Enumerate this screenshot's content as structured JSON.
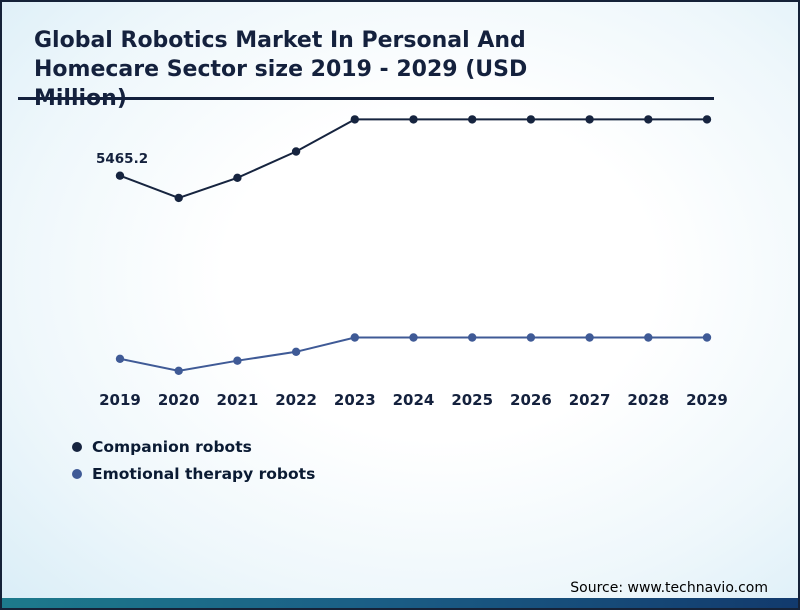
{
  "title": "Global Robotics Market In Personal And Homecare Sector size 2019 - 2029 (USD Million)",
  "source": "Source: www.technavio.com",
  "colors": {
    "title": "#14213d",
    "companion": "#16243f",
    "emotional": "#3f5a96",
    "strip_left": "#1d7a8c",
    "strip_right": "#123a6d"
  },
  "chart_data": {
    "type": "line",
    "categories": [
      "2019",
      "2020",
      "2021",
      "2022",
      "2023",
      "2024",
      "2025",
      "2026",
      "2027",
      "2028",
      "2029"
    ],
    "series": [
      {
        "name": "Companion robots",
        "color": "#16243f",
        "values": [
          5465.2,
          4890,
          5410,
          6090,
          6920,
          6920,
          6920,
          6920,
          6920,
          6920,
          6920
        ]
      },
      {
        "name": "Emotional therapy robots",
        "color": "#3f5a96",
        "values": [
          730,
          420,
          680,
          910,
          1280,
          1280,
          1280,
          1280,
          1280,
          1280,
          1280
        ]
      }
    ],
    "ylim": [
      0,
      7500
    ],
    "xlabel": "",
    "ylabel": "",
    "grid": false,
    "legend_position": "bottom-left",
    "data_label": {
      "series": "Companion robots",
      "category": "2019",
      "text": "5465.2"
    }
  },
  "legend": [
    {
      "label": "Companion robots",
      "color": "#16243f"
    },
    {
      "label": "Emotional therapy robots",
      "color": "#3f5a96"
    }
  ]
}
